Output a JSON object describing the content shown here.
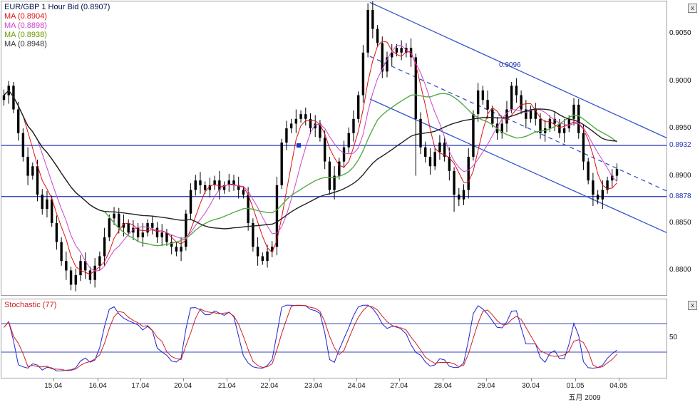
{
  "ui": {
    "close_label": "x"
  },
  "main_chart": {
    "legend": [
      {
        "label": "EUR/GBP 1 Hour Bid (0.8907)",
        "color": "#001144"
      },
      {
        "label": "MA (0.8904)",
        "color": "#dd1111"
      },
      {
        "label": "MA (0.8898)",
        "color": "#cc44cc"
      },
      {
        "label": "MA (0.8938)",
        "color": "#669900"
      },
      {
        "label": "MA (0.8948)",
        "color": "#333333"
      }
    ],
    "y_axis": {
      "ticks": [
        0.905,
        0.9,
        0.895,
        0.89,
        0.885,
        0.88
      ],
      "decimals": 4
    },
    "price_range": {
      "top": 0.9084,
      "bottom": 0.8774
    },
    "horizontal_levels": [
      {
        "value": 0.8932,
        "label": "0.8932",
        "color": "#2233bb"
      },
      {
        "value": 0.8878,
        "label": "0.8878",
        "color": "#2233bb"
      }
    ],
    "annotation": {
      "text": "0.9096",
      "color": "#2233bb"
    }
  },
  "chart_data": {
    "type": "candlestick",
    "symbol": "EUR/GBP",
    "timeframe": "1 Hour Bid",
    "last_price": 0.8907,
    "first_open": 0.898,
    "closes": [
      0.8985,
      0.8995,
      0.897,
      0.8945,
      0.892,
      0.89,
      0.891,
      0.888,
      0.8865,
      0.8875,
      0.885,
      0.883,
      0.881,
      0.88,
      0.8785,
      0.8795,
      0.881,
      0.88,
      0.879,
      0.8805,
      0.8815,
      0.8835,
      0.8855,
      0.886,
      0.8845,
      0.885,
      0.884,
      0.8845,
      0.8835,
      0.884,
      0.885,
      0.8845,
      0.8835,
      0.884,
      0.883,
      0.8825,
      0.882,
      0.8825,
      0.886,
      0.8885,
      0.8895,
      0.889,
      0.8885,
      0.889,
      0.8895,
      0.8885,
      0.889,
      0.8895,
      0.889,
      0.8885,
      0.888,
      0.885,
      0.8825,
      0.8815,
      0.881,
      0.882,
      0.8825,
      0.889,
      0.8935,
      0.895,
      0.8955,
      0.896,
      0.8965,
      0.896,
      0.895,
      0.8955,
      0.894,
      0.8915,
      0.8885,
      0.89,
      0.8915,
      0.893,
      0.8945,
      0.896,
      0.8985,
      0.903,
      0.9075,
      0.9055,
      0.904,
      0.901,
      0.9025,
      0.903,
      0.9035,
      0.903,
      0.9035,
      0.9025,
      0.896,
      0.893,
      0.892,
      0.891,
      0.8925,
      0.8935,
      0.892,
      0.8905,
      0.888,
      0.8875,
      0.8885,
      0.892,
      0.8965,
      0.899,
      0.898,
      0.897,
      0.8955,
      0.8945,
      0.8955,
      0.897,
      0.8995,
      0.8985,
      0.897,
      0.896,
      0.897,
      0.896,
      0.8945,
      0.895,
      0.896,
      0.8955,
      0.8945,
      0.895,
      0.896,
      0.8975,
      0.8945,
      0.8915,
      0.8895,
      0.888,
      0.8875,
      0.8885,
      0.8895,
      0.89,
      0.8907
    ],
    "wick_pattern": [
      0.0006,
      0.0009,
      0.0004,
      0.0008,
      0.0005,
      0.001,
      0.0004,
      0.0007
    ],
    "extreme_overrides": {
      "1": {
        "high": 0.9
      },
      "14": {
        "low": 0.8779
      },
      "76": {
        "high": 0.9082
      },
      "86": {
        "low": 0.89
      },
      "94": {
        "low": 0.8862
      },
      "123": {
        "low": 0.8868
      }
    },
    "moving_averages": [
      {
        "window": 5,
        "color": "#dd1111",
        "width": 1.0,
        "legend_value": 0.8904
      },
      {
        "window": 8,
        "color": "#cc44cc",
        "width": 1.0,
        "legend_value": 0.8898
      },
      {
        "window": 22,
        "color": "#55aa44",
        "width": 1.4,
        "legend_value": 0.8938
      },
      {
        "window": 40,
        "color": "#222222",
        "width": 1.4,
        "legend_value": 0.8948
      }
    ],
    "support_resistance": [
      0.8932,
      0.8878
    ],
    "trend_channel": {
      "upper": {
        "x1": 0.554,
        "p1": 0.9083,
        "x2": 1.0,
        "p2": 0.894,
        "style": "solid"
      },
      "middle": {
        "x1": 0.554,
        "p1": 0.9026,
        "x2": 1.0,
        "p2": 0.8884,
        "style": "dashed"
      },
      "lower": {
        "x1": 0.554,
        "p1": 0.8981,
        "x2": 1.0,
        "p2": 0.884,
        "style": "solid"
      }
    },
    "line_color": "#3355cc",
    "candle_color": "#000000"
  },
  "stochastic": {
    "legend": "Stochastic (77)",
    "legend_color": "#cc2222",
    "k_window": 10,
    "k_color": "#2222cc",
    "d_color": "#cc2222",
    "levels": [
      70,
      30
    ],
    "level_color": "#3344bb",
    "axis_label": "50",
    "value_range": [
      0,
      100
    ]
  },
  "x_axis": {
    "labels": [
      "15.04",
      "16.04",
      "17.04",
      "20.04",
      "21.04",
      "22.04",
      "23.04",
      "24.04",
      "27.04",
      "28.04",
      "29.04",
      "30.04",
      "01.05",
      "04.05"
    ],
    "positions": [
      0.079,
      0.146,
      0.21,
      0.274,
      0.34,
      0.404,
      0.47,
      0.535,
      0.599,
      0.665,
      0.73,
      0.797,
      0.864,
      0.929
    ],
    "month_label": "五月 2009"
  }
}
